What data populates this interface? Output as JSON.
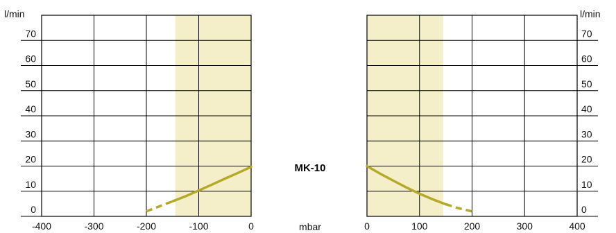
{
  "chart_data": [
    {
      "type": "line",
      "panel": "vacuum",
      "xlabel": "",
      "ylabel": "l/min",
      "xlim": [
        -400,
        0
      ],
      "ylim": [
        0,
        80
      ],
      "xticks": [
        -400,
        -300,
        -200,
        -100,
        0
      ],
      "yticks": [
        0,
        10,
        20,
        30,
        40,
        50,
        60,
        70
      ],
      "ytick_labels": [
        "0",
        "10",
        "20",
        "30",
        "40",
        "50",
        "60",
        "70"
      ],
      "xtick_labels": [
        "-400",
        "-300",
        "-200",
        "-100",
        "0"
      ],
      "grid": true,
      "shaded_range": [
        -145,
        0
      ],
      "series": [
        {
          "x": [
            -200,
            -175,
            -150,
            -125,
            -100,
            -75,
            -50,
            -25,
            0
          ],
          "y": [
            2,
            4,
            6,
            8,
            10.3,
            12.6,
            15,
            17.3,
            19.7
          ],
          "solid_range": [
            -150,
            0
          ],
          "dashed_range": [
            -200,
            -150
          ]
        }
      ]
    },
    {
      "type": "line",
      "panel": "pressure",
      "xlabel": "",
      "ylabel": "l/min",
      "xlim": [
        0,
        400
      ],
      "ylim": [
        0,
        80
      ],
      "xticks": [
        0,
        100,
        200,
        300,
        400
      ],
      "yticks": [
        0,
        10,
        20,
        30,
        40,
        50,
        60,
        70
      ],
      "ytick_labels": [
        "0",
        "10",
        "20",
        "30",
        "40",
        "50",
        "60",
        "70"
      ],
      "xtick_labels": [
        "0",
        "100",
        "200",
        "300",
        "400"
      ],
      "grid": true,
      "shaded_range": [
        0,
        145
      ],
      "series": [
        {
          "x": [
            0,
            25,
            50,
            75,
            100,
            125,
            150,
            175,
            200
          ],
          "y": [
            20,
            17,
            14.2,
            11.5,
            9,
            6.8,
            4.8,
            3.2,
            2
          ],
          "solid_range": [
            0,
            150
          ],
          "dashed_range": [
            150,
            200
          ]
        }
      ]
    }
  ],
  "labels": {
    "model": "MK-10",
    "pressure_unit": "mbar",
    "flow_unit_left": "l/min",
    "flow_unit_right": "l/min"
  },
  "colors": {
    "curve": "#b5a92a",
    "shade": "#f4efc8",
    "grid": "#000000"
  }
}
